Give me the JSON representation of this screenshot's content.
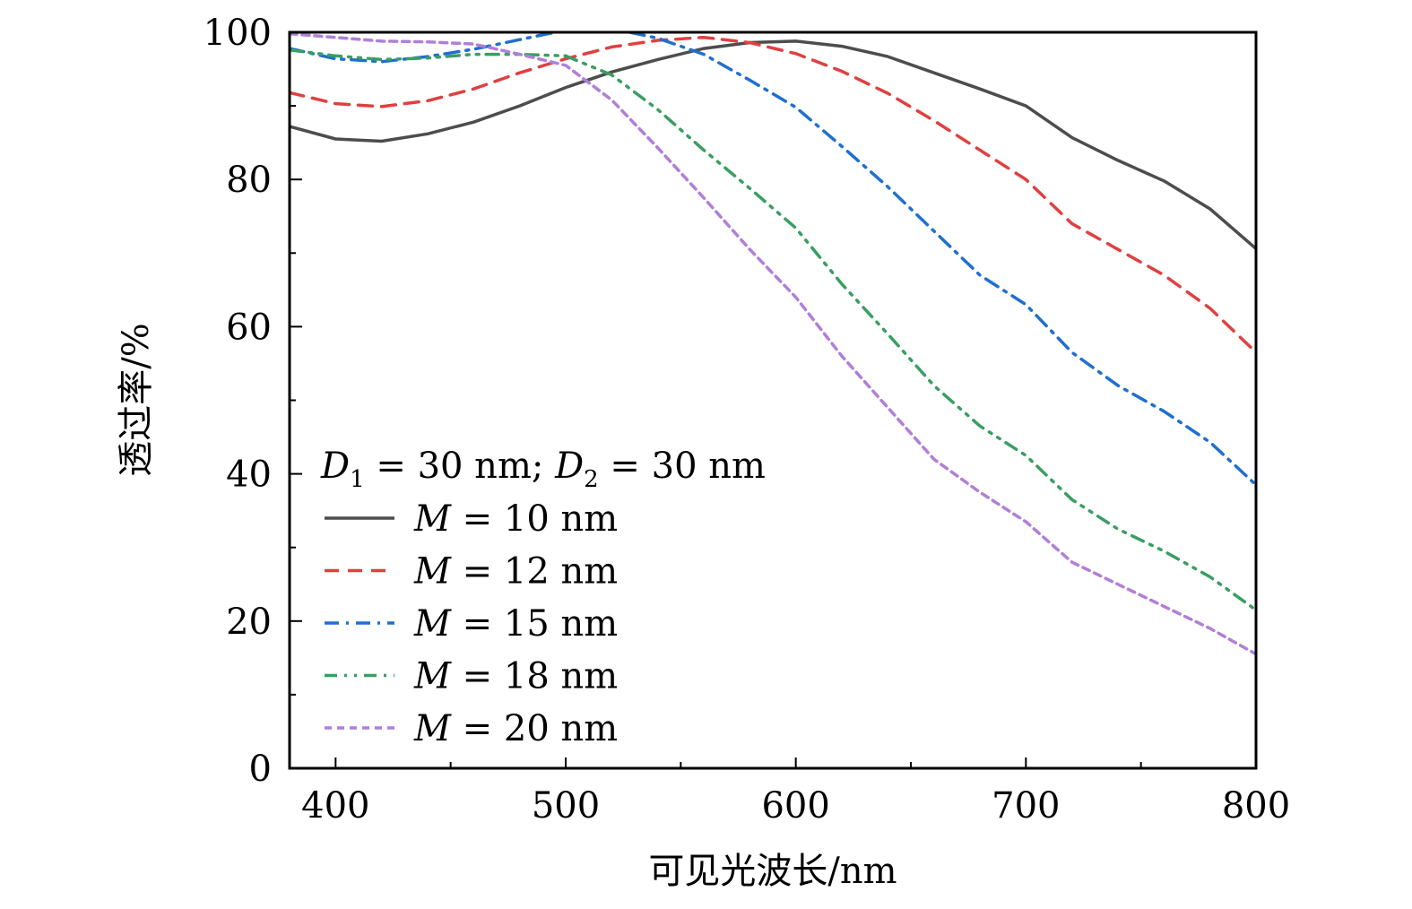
{
  "chart_data": {
    "type": "line",
    "title": "",
    "xlabel": "可见光波长/nm",
    "ylabel": "透过率/%",
    "xlim": [
      380,
      800
    ],
    "ylim": [
      0,
      100
    ],
    "xticks": [
      400,
      500,
      600,
      700,
      800
    ],
    "xtick_labels": [
      "400",
      "500",
      "600",
      "700",
      "800"
    ],
    "xminor_ticks": [
      450,
      550,
      650,
      750
    ],
    "yticks": [
      0,
      20,
      40,
      60,
      80,
      100
    ],
    "ytick_labels": [
      "0",
      "20",
      "40",
      "60",
      "80",
      "100"
    ],
    "yminor_ticks": [
      10,
      30,
      50,
      70,
      90
    ],
    "grid": false,
    "legend": {
      "placement": "lower-left",
      "title_parts": {
        "d1": "D",
        "sub1": "1",
        "eq1": " = 30 nm; ",
        "d2": "D",
        "sub2": "2",
        "eq2": " = 30 nm"
      },
      "title": "D1 = 30 nm; D2 = 30 nm"
    },
    "x": [
      380,
      400,
      420,
      440,
      460,
      480,
      500,
      520,
      540,
      560,
      580,
      600,
      620,
      640,
      660,
      680,
      700,
      720,
      740,
      760,
      780,
      800
    ],
    "series": [
      {
        "name": "M = 10 nm",
        "label_var": "M",
        "label_rest": " = 10 nm",
        "color": "#4d4d4d",
        "dash": "solid",
        "values": [
          87.2,
          85.5,
          85.2,
          86.2,
          87.8,
          90.0,
          92.5,
          94.6,
          96.3,
          97.8,
          98.6,
          98.8,
          98.1,
          96.7,
          94.5,
          92.3,
          90.0,
          85.7,
          82.6,
          79.8,
          76.0,
          70.6
        ]
      },
      {
        "name": "M = 12 nm",
        "label_var": "M",
        "label_rest": " = 12 nm",
        "color": "#e04040",
        "dash": "dashed",
        "values": [
          91.8,
          90.3,
          89.9,
          90.7,
          92.3,
          94.5,
          96.4,
          98.0,
          98.9,
          99.3,
          98.6,
          97.1,
          94.7,
          91.7,
          88.0,
          84.0,
          80.0,
          74.0,
          70.5,
          67.0,
          62.5,
          56.5
        ]
      },
      {
        "name": "M = 15 nm",
        "label_var": "M",
        "label_rest": " = 15 nm",
        "color": "#1f6fd0",
        "dash": "dashdot",
        "values": [
          97.8,
          96.4,
          96.0,
          96.7,
          97.7,
          99.0,
          100.3,
          100.5,
          99.2,
          97.0,
          93.5,
          89.8,
          84.5,
          79.0,
          73.0,
          67.0,
          63.0,
          56.5,
          52.0,
          48.5,
          44.3,
          38.5
        ]
      },
      {
        "name": "M = 18 nm",
        "label_var": "M",
        "label_rest": " = 18 nm",
        "color": "#3a9e62",
        "dash": "dashdotdot",
        "values": [
          97.6,
          96.8,
          96.3,
          96.5,
          97.0,
          97.0,
          96.8,
          94.2,
          89.5,
          84.0,
          78.8,
          73.4,
          65.8,
          59.0,
          52.0,
          46.5,
          42.5,
          36.5,
          32.5,
          29.5,
          26.0,
          21.5
        ]
      },
      {
        "name": "M = 20 nm",
        "label_var": "M",
        "label_rest": " = 20 nm",
        "color": "#b07fd8",
        "dash": "dotted",
        "values": [
          99.8,
          99.3,
          98.8,
          98.7,
          98.4,
          97.0,
          95.5,
          90.8,
          84.3,
          77.5,
          70.5,
          64.0,
          56.0,
          49.0,
          42.0,
          37.5,
          33.5,
          28.0,
          25.0,
          22.0,
          19.0,
          15.5
        ]
      }
    ]
  }
}
